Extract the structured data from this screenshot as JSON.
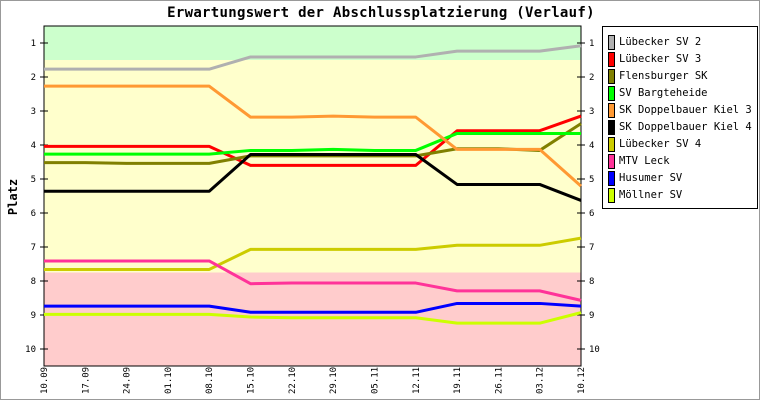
{
  "chart_data": {
    "type": "line",
    "title": "Erwartungswert der Abschlussplatzierung (Verlauf)",
    "xlabel": "",
    "ylabel": "Platz",
    "ylim": [
      0.5,
      10.5
    ],
    "y_inverted": true,
    "yticks": [
      "1",
      "2",
      "3",
      "4",
      "5",
      "6",
      "7",
      "8",
      "9",
      "10"
    ],
    "x": [
      "10.09",
      "17.09",
      "24.09",
      "01.10",
      "08.10",
      "15.10",
      "22.10",
      "29.10",
      "05.11",
      "12.11",
      "19.11",
      "26.11",
      "03.12",
      "10.12"
    ],
    "bands": [
      {
        "from": 0.5,
        "to": 1.5,
        "color": "#ccffcc"
      },
      {
        "from": 1.5,
        "to": 7.75,
        "color": "#ffffcc"
      },
      {
        "from": 7.75,
        "to": 10.5,
        "color": "#ffcccc"
      }
    ],
    "legend_position": "right",
    "series": [
      {
        "name": "Lübecker SV 2",
        "color": "#b0b0b0",
        "values": [
          1.77,
          1.77,
          1.77,
          1.77,
          1.77,
          1.41,
          1.41,
          1.41,
          1.41,
          1.41,
          1.24,
          1.24,
          1.24,
          1.08
        ]
      },
      {
        "name": "Lübecker SV 3",
        "color": "#ff0000",
        "values": [
          4.04,
          4.04,
          4.04,
          4.04,
          4.04,
          4.6,
          4.6,
          4.6,
          4.6,
          4.6,
          3.58,
          3.58,
          3.58,
          3.15
        ]
      },
      {
        "name": "Flensburger SK",
        "color": "#808000",
        "values": [
          4.52,
          4.52,
          4.54,
          4.54,
          4.54,
          4.32,
          4.32,
          4.32,
          4.32,
          4.32,
          4.11,
          4.11,
          4.16,
          3.37
        ]
      },
      {
        "name": "SV Bargteheide",
        "color": "#00ff00",
        "values": [
          4.27,
          4.27,
          4.27,
          4.27,
          4.27,
          4.16,
          4.16,
          4.13,
          4.16,
          4.16,
          3.66,
          3.66,
          3.66,
          3.66
        ]
      },
      {
        "name": "SK Doppelbauer Kiel 3",
        "color": "#ff9933",
        "values": [
          2.27,
          2.27,
          2.27,
          2.27,
          2.27,
          3.18,
          3.18,
          3.15,
          3.18,
          3.18,
          4.13,
          4.13,
          4.13,
          5.21
        ]
      },
      {
        "name": "SK Doppelbauer Kiel 4",
        "color": "#000000",
        "values": [
          5.36,
          5.36,
          5.36,
          5.36,
          5.36,
          4.28,
          4.28,
          4.28,
          4.28,
          4.28,
          5.16,
          5.16,
          5.16,
          5.63
        ]
      },
      {
        "name": "Lübecker SV 4",
        "color": "#cccc00",
        "values": [
          7.66,
          7.66,
          7.66,
          7.66,
          7.66,
          7.07,
          7.07,
          7.07,
          7.07,
          7.07,
          6.95,
          6.95,
          6.95,
          6.74
        ]
      },
      {
        "name": "MTV Leck",
        "color": "#ff3399",
        "values": [
          7.41,
          7.41,
          7.41,
          7.41,
          7.41,
          8.08,
          8.06,
          8.06,
          8.06,
          8.06,
          8.29,
          8.29,
          8.29,
          8.57
        ]
      },
      {
        "name": "Husumer SV",
        "color": "#0000ff",
        "values": [
          8.74,
          8.74,
          8.74,
          8.74,
          8.74,
          8.92,
          8.92,
          8.92,
          8.92,
          8.92,
          8.66,
          8.66,
          8.66,
          8.74
        ]
      },
      {
        "name": "Möllner SV",
        "color": "#ccff00",
        "values": [
          8.98,
          8.98,
          8.98,
          8.98,
          8.98,
          9.06,
          9.08,
          9.08,
          9.08,
          9.08,
          9.24,
          9.24,
          9.24,
          8.93
        ]
      }
    ]
  }
}
